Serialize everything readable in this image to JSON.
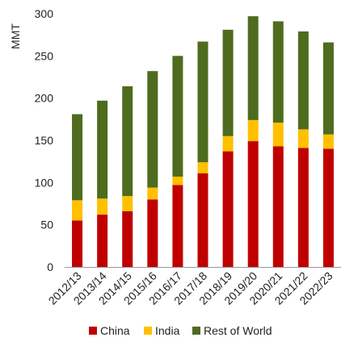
{
  "chart_data": {
    "type": "bar",
    "stacked": true,
    "title": "",
    "xlabel": "",
    "ylabel": "MMT",
    "ylim": [
      0,
      300
    ],
    "yticks": [
      0,
      50,
      100,
      150,
      200,
      250,
      300
    ],
    "grid": false,
    "legend_position": "bottom",
    "categories": [
      "2012/13",
      "2013/14",
      "2014/15",
      "2015/16",
      "2016/17",
      "2017/18",
      "2018/19",
      "2019/20",
      "2020/21",
      "2021/22",
      "2022/23"
    ],
    "series": [
      {
        "name": "China",
        "color": "#c00000",
        "values": [
          55,
          62,
          66,
          80,
          97,
          111,
          137,
          149,
          143,
          141,
          140
        ]
      },
      {
        "name": "India",
        "color": "#ffc000",
        "values": [
          24,
          19,
          18,
          14,
          10,
          13,
          18,
          25,
          28,
          22,
          17
        ]
      },
      {
        "name": "Rest of World",
        "color": "#4e6b1e",
        "values": [
          102,
          116,
          130,
          138,
          143,
          143,
          126,
          123,
          120,
          116,
          109
        ]
      }
    ]
  }
}
